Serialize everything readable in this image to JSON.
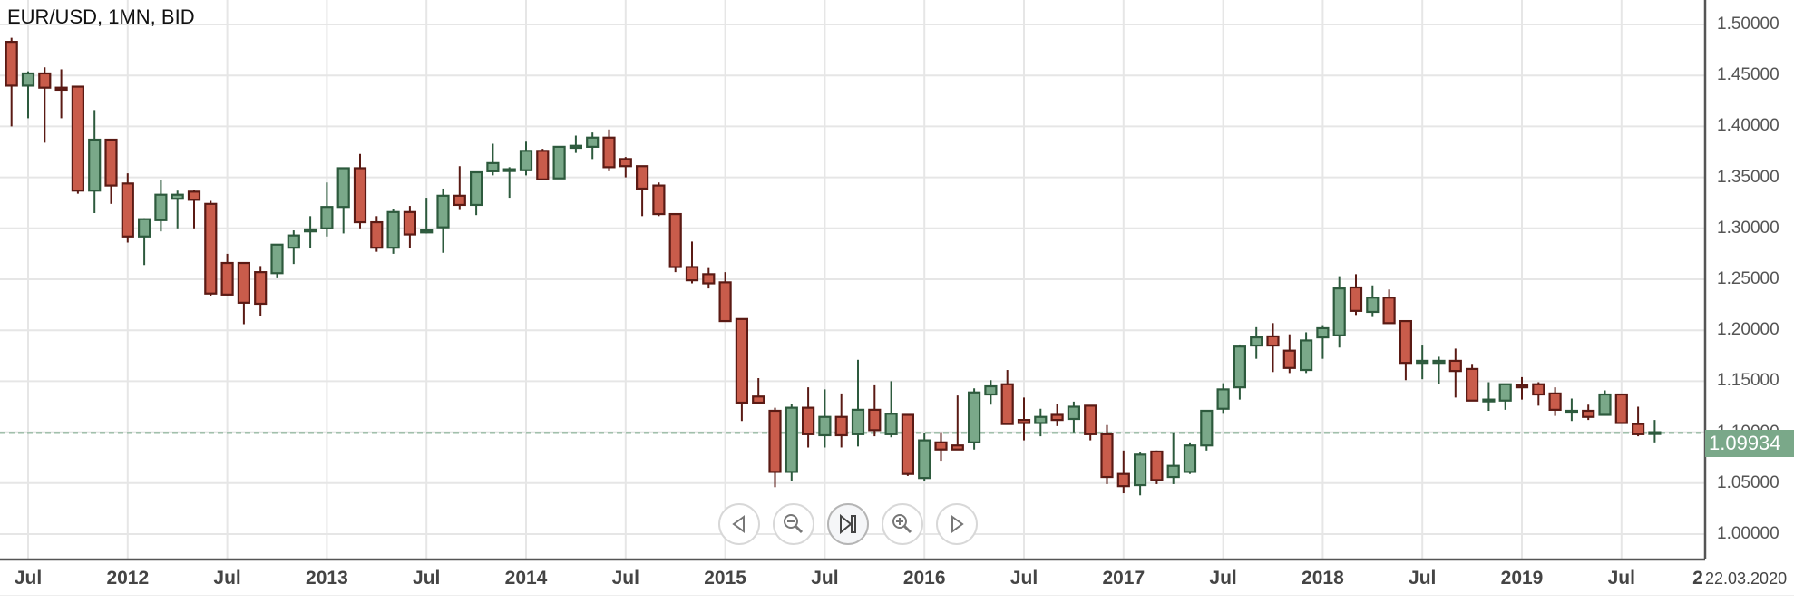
{
  "header": {
    "title": "EUR/USD, 1MN, BID"
  },
  "price_tag": {
    "value": "1.09934",
    "color": "#7aa889"
  },
  "date_label": "22.03.2020",
  "x_overflow_label": "2",
  "nav_buttons": [
    {
      "name": "scroll-left-button",
      "icon": "triangle-left-icon"
    },
    {
      "name": "zoom-out-button",
      "icon": "magnifier-minus-icon"
    },
    {
      "name": "reset-to-latest-button",
      "icon": "skip-to-end-icon"
    },
    {
      "name": "zoom-in-button",
      "icon": "magnifier-plus-icon"
    },
    {
      "name": "scroll-right-button",
      "icon": "triangle-right-icon"
    }
  ],
  "colors": {
    "up_fill": "#7aa889",
    "up_stroke": "#2d5a3d",
    "down_fill": "#c95c4b",
    "down_stroke": "#5a1a14",
    "grid": "#e6e6e6",
    "axis": "#555555",
    "price_line": "#7aa889"
  },
  "chart_data": {
    "type": "candlestick",
    "title": "EUR/USD, 1MN, BID",
    "xlabel": "",
    "ylabel": "",
    "ylim": [
      0.985,
      1.525
    ],
    "y_ticks": [
      "1.50000",
      "1.45000",
      "1.40000",
      "1.35000",
      "1.30000",
      "1.25000",
      "1.20000",
      "1.15000",
      "1.10000",
      "1.05000",
      "1.00000"
    ],
    "x_ticks": [
      {
        "label": "Jul",
        "month_index": 1
      },
      {
        "label": "2012",
        "month_index": 7
      },
      {
        "label": "Jul",
        "month_index": 13
      },
      {
        "label": "2013",
        "month_index": 19
      },
      {
        "label": "Jul",
        "month_index": 25
      },
      {
        "label": "2014",
        "month_index": 31
      },
      {
        "label": "Jul",
        "month_index": 37
      },
      {
        "label": "2015",
        "month_index": 43
      },
      {
        "label": "Jul",
        "month_index": 49
      },
      {
        "label": "2016",
        "month_index": 55
      },
      {
        "label": "Jul",
        "month_index": 61
      },
      {
        "label": "2017",
        "month_index": 67
      },
      {
        "label": "Jul",
        "month_index": 73
      },
      {
        "label": "2018",
        "month_index": 79
      },
      {
        "label": "Jul",
        "month_index": 85
      },
      {
        "label": "2019",
        "month_index": 91
      },
      {
        "label": "Jul",
        "month_index": 97
      }
    ],
    "last_price": 1.09934,
    "grid": true,
    "legend": null,
    "candles_note": "month_index 0 = Jun 2011; values estimated from pixels",
    "candles": [
      {
        "m": "2011-06",
        "o": 1.483,
        "h": 1.487,
        "l": 1.4,
        "c": 1.44
      },
      {
        "m": "2011-07",
        "o": 1.44,
        "h": 1.454,
        "l": 1.408,
        "c": 1.452
      },
      {
        "m": "2011-08",
        "o": 1.452,
        "h": 1.458,
        "l": 1.384,
        "c": 1.438
      },
      {
        "m": "2011-09",
        "o": 1.438,
        "h": 1.456,
        "l": 1.408,
        "c": 1.436
      },
      {
        "m": "2011-10",
        "o": 1.439,
        "h": 1.44,
        "l": 1.334,
        "c": 1.337
      },
      {
        "m": "2011-11",
        "o": 1.337,
        "h": 1.416,
        "l": 1.315,
        "c": 1.387
      },
      {
        "m": "2011-12",
        "o": 1.387,
        "h": 1.387,
        "l": 1.324,
        "c": 1.342
      },
      {
        "m": "2012-01",
        "o": 1.344,
        "h": 1.354,
        "l": 1.286,
        "c": 1.292
      },
      {
        "m": "2012-02",
        "o": 1.292,
        "h": 1.31,
        "l": 1.264,
        "c": 1.309
      },
      {
        "m": "2012-03",
        "o": 1.308,
        "h": 1.347,
        "l": 1.297,
        "c": 1.333
      },
      {
        "m": "2012-04",
        "o": 1.329,
        "h": 1.337,
        "l": 1.3,
        "c": 1.333
      },
      {
        "m": "2012-05",
        "o": 1.336,
        "h": 1.338,
        "l": 1.3,
        "c": 1.328
      },
      {
        "m": "2012-06",
        "o": 1.324,
        "h": 1.327,
        "l": 1.234,
        "c": 1.236
      },
      {
        "m": "2012-07",
        "o": 1.266,
        "h": 1.275,
        "l": 1.234,
        "c": 1.235
      },
      {
        "m": "2012-08",
        "o": 1.266,
        "h": 1.266,
        "l": 1.206,
        "c": 1.227
      },
      {
        "m": "2012-09",
        "o": 1.257,
        "h": 1.263,
        "l": 1.214,
        "c": 1.226
      },
      {
        "m": "2012-10",
        "o": 1.256,
        "h": 1.282,
        "l": 1.251,
        "c": 1.284
      },
      {
        "m": "2012-11",
        "o": 1.281,
        "h": 1.298,
        "l": 1.265,
        "c": 1.293
      },
      {
        "m": "2012-12",
        "o": 1.297,
        "h": 1.312,
        "l": 1.281,
        "c": 1.299
      },
      {
        "m": "2013-01",
        "o": 1.3,
        "h": 1.345,
        "l": 1.292,
        "c": 1.321
      },
      {
        "m": "2013-02",
        "o": 1.321,
        "h": 1.347,
        "l": 1.295,
        "c": 1.359
      },
      {
        "m": "2013-03",
        "o": 1.359,
        "h": 1.373,
        "l": 1.3,
        "c": 1.306
      },
      {
        "m": "2013-04",
        "o": 1.306,
        "h": 1.312,
        "l": 1.277,
        "c": 1.281
      },
      {
        "m": "2013-05",
        "o": 1.281,
        "h": 1.319,
        "l": 1.275,
        "c": 1.316
      },
      {
        "m": "2013-06",
        "o": 1.316,
        "h": 1.322,
        "l": 1.281,
        "c": 1.294
      },
      {
        "m": "2013-07",
        "o": 1.296,
        "h": 1.33,
        "l": 1.295,
        "c": 1.298
      },
      {
        "m": "2013-08",
        "o": 1.301,
        "h": 1.339,
        "l": 1.276,
        "c": 1.332
      },
      {
        "m": "2013-09",
        "o": 1.332,
        "h": 1.361,
        "l": 1.318,
        "c": 1.323
      },
      {
        "m": "2013-10",
        "o": 1.323,
        "h": 1.354,
        "l": 1.313,
        "c": 1.355
      },
      {
        "m": "2013-11",
        "o": 1.356,
        "h": 1.383,
        "l": 1.352,
        "c": 1.364
      },
      {
        "m": "2013-12",
        "o": 1.358,
        "h": 1.36,
        "l": 1.33,
        "c": 1.358
      },
      {
        "m": "2014-01",
        "o": 1.357,
        "h": 1.385,
        "l": 1.352,
        "c": 1.376
      },
      {
        "m": "2014-02",
        "o": 1.376,
        "h": 1.378,
        "l": 1.348,
        "c": 1.348
      },
      {
        "m": "2014-03",
        "o": 1.349,
        "h": 1.378,
        "l": 1.349,
        "c": 1.38
      },
      {
        "m": "2014-04",
        "o": 1.379,
        "h": 1.391,
        "l": 1.374,
        "c": 1.381
      },
      {
        "m": "2014-05",
        "o": 1.38,
        "h": 1.394,
        "l": 1.368,
        "c": 1.389
      },
      {
        "m": "2014-06",
        "o": 1.389,
        "h": 1.397,
        "l": 1.356,
        "c": 1.36
      },
      {
        "m": "2014-07",
        "o": 1.368,
        "h": 1.37,
        "l": 1.35,
        "c": 1.361
      },
      {
        "m": "2014-08",
        "o": 1.361,
        "h": 1.361,
        "l": 1.312,
        "c": 1.339
      },
      {
        "m": "2014-09",
        "o": 1.342,
        "h": 1.345,
        "l": 1.312,
        "c": 1.314
      },
      {
        "m": "2014-10",
        "o": 1.314,
        "h": 1.315,
        "l": 1.257,
        "c": 1.262
      },
      {
        "m": "2014-11",
        "o": 1.262,
        "h": 1.287,
        "l": 1.246,
        "c": 1.249
      },
      {
        "m": "2014-12",
        "o": 1.255,
        "h": 1.261,
        "l": 1.241,
        "c": 1.246
      },
      {
        "m": "2015-01",
        "o": 1.247,
        "h": 1.257,
        "l": 1.209,
        "c": 1.209
      },
      {
        "m": "2015-02",
        "o": 1.211,
        "h": 1.211,
        "l": 1.111,
        "c": 1.129
      },
      {
        "m": "2015-03",
        "o": 1.135,
        "h": 1.153,
        "l": 1.128,
        "c": 1.129
      },
      {
        "m": "2015-04",
        "o": 1.121,
        "h": 1.124,
        "l": 1.046,
        "c": 1.061
      },
      {
        "m": "2015-05",
        "o": 1.061,
        "h": 1.128,
        "l": 1.052,
        "c": 1.124
      },
      {
        "m": "2015-06",
        "o": 1.124,
        "h": 1.144,
        "l": 1.085,
        "c": 1.098
      },
      {
        "m": "2015-07",
        "o": 1.097,
        "h": 1.142,
        "l": 1.085,
        "c": 1.115
      },
      {
        "m": "2015-08",
        "o": 1.115,
        "h": 1.138,
        "l": 1.085,
        "c": 1.097
      },
      {
        "m": "2015-09",
        "o": 1.098,
        "h": 1.171,
        "l": 1.086,
        "c": 1.122
      },
      {
        "m": "2015-10",
        "o": 1.122,
        "h": 1.146,
        "l": 1.096,
        "c": 1.102
      },
      {
        "m": "2015-11",
        "o": 1.098,
        "h": 1.15,
        "l": 1.095,
        "c": 1.118
      },
      {
        "m": "2015-12",
        "o": 1.117,
        "h": 1.117,
        "l": 1.057,
        "c": 1.059
      },
      {
        "m": "2016-01",
        "o": 1.055,
        "h": 1.099,
        "l": 1.052,
        "c": 1.092
      },
      {
        "m": "2016-02",
        "o": 1.09,
        "h": 1.1,
        "l": 1.072,
        "c": 1.083
      },
      {
        "m": "2016-03",
        "o": 1.087,
        "h": 1.136,
        "l": 1.083,
        "c": 1.083
      },
      {
        "m": "2016-04",
        "o": 1.09,
        "h": 1.143,
        "l": 1.083,
        "c": 1.139
      },
      {
        "m": "2016-05",
        "o": 1.137,
        "h": 1.151,
        "l": 1.127,
        "c": 1.145
      },
      {
        "m": "2016-06",
        "o": 1.147,
        "h": 1.161,
        "l": 1.108,
        "c": 1.108
      },
      {
        "m": "2016-07",
        "o": 1.112,
        "h": 1.134,
        "l": 1.092,
        "c": 1.109
      },
      {
        "m": "2016-08",
        "o": 1.109,
        "h": 1.123,
        "l": 1.096,
        "c": 1.115
      },
      {
        "m": "2016-09",
        "o": 1.117,
        "h": 1.128,
        "l": 1.106,
        "c": 1.112
      },
      {
        "m": "2016-10",
        "o": 1.113,
        "h": 1.13,
        "l": 1.1,
        "c": 1.125
      },
      {
        "m": "2016-11",
        "o": 1.126,
        "h": 1.126,
        "l": 1.092,
        "c": 1.098
      },
      {
        "m": "2016-12",
        "o": 1.098,
        "h": 1.107,
        "l": 1.049,
        "c": 1.056
      },
      {
        "m": "2017-01",
        "o": 1.059,
        "h": 1.082,
        "l": 1.04,
        "c": 1.047
      },
      {
        "m": "2017-02",
        "o": 1.048,
        "h": 1.08,
        "l": 1.038,
        "c": 1.078
      },
      {
        "m": "2017-03",
        "o": 1.081,
        "h": 1.082,
        "l": 1.049,
        "c": 1.053
      },
      {
        "m": "2017-04",
        "o": 1.056,
        "h": 1.099,
        "l": 1.049,
        "c": 1.067
      },
      {
        "m": "2017-05",
        "o": 1.061,
        "h": 1.09,
        "l": 1.059,
        "c": 1.087
      },
      {
        "m": "2017-06",
        "o": 1.087,
        "h": 1.121,
        "l": 1.082,
        "c": 1.121
      },
      {
        "m": "2017-07",
        "o": 1.123,
        "h": 1.148,
        "l": 1.118,
        "c": 1.142
      },
      {
        "m": "2017-08",
        "o": 1.144,
        "h": 1.186,
        "l": 1.132,
        "c": 1.184
      },
      {
        "m": "2017-09",
        "o": 1.185,
        "h": 1.203,
        "l": 1.172,
        "c": 1.193
      },
      {
        "m": "2017-10",
        "o": 1.194,
        "h": 1.207,
        "l": 1.159,
        "c": 1.185
      },
      {
        "m": "2017-11",
        "o": 1.18,
        "h": 1.196,
        "l": 1.158,
        "c": 1.163
      },
      {
        "m": "2017-12",
        "o": 1.161,
        "h": 1.198,
        "l": 1.158,
        "c": 1.19
      },
      {
        "m": "2018-01",
        "o": 1.193,
        "h": 1.205,
        "l": 1.172,
        "c": 1.202
      },
      {
        "m": "2018-02",
        "o": 1.195,
        "h": 1.253,
        "l": 1.183,
        "c": 1.241
      },
      {
        "m": "2018-03",
        "o": 1.242,
        "h": 1.255,
        "l": 1.215,
        "c": 1.219
      },
      {
        "m": "2018-04",
        "o": 1.218,
        "h": 1.244,
        "l": 1.213,
        "c": 1.232
      },
      {
        "m": "2018-05",
        "o": 1.232,
        "h": 1.24,
        "l": 1.209,
        "c": 1.207
      },
      {
        "m": "2018-06",
        "o": 1.209,
        "h": 1.209,
        "l": 1.151,
        "c": 1.168
      },
      {
        "m": "2018-07",
        "o": 1.168,
        "h": 1.185,
        "l": 1.152,
        "c": 1.17
      },
      {
        "m": "2018-08",
        "o": 1.168,
        "h": 1.174,
        "l": 1.147,
        "c": 1.17
      },
      {
        "m": "2018-09",
        "o": 1.17,
        "h": 1.182,
        "l": 1.134,
        "c": 1.16
      },
      {
        "m": "2018-10",
        "o": 1.162,
        "h": 1.167,
        "l": 1.132,
        "c": 1.131
      },
      {
        "m": "2018-11",
        "o": 1.131,
        "h": 1.149,
        "l": 1.121,
        "c": 1.132
      },
      {
        "m": "2018-12",
        "o": 1.131,
        "h": 1.146,
        "l": 1.122,
        "c": 1.147
      },
      {
        "m": "2019-01",
        "o": 1.146,
        "h": 1.154,
        "l": 1.132,
        "c": 1.144
      },
      {
        "m": "2019-02",
        "o": 1.147,
        "h": 1.149,
        "l": 1.126,
        "c": 1.137
      },
      {
        "m": "2019-03",
        "o": 1.138,
        "h": 1.144,
        "l": 1.116,
        "c": 1.122
      },
      {
        "m": "2019-04",
        "o": 1.121,
        "h": 1.133,
        "l": 1.111,
        "c": 1.121
      },
      {
        "m": "2019-05",
        "o": 1.121,
        "h": 1.127,
        "l": 1.112,
        "c": 1.115
      },
      {
        "m": "2019-06",
        "o": 1.117,
        "h": 1.141,
        "l": 1.117,
        "c": 1.137
      },
      {
        "m": "2019-07",
        "o": 1.137,
        "h": 1.137,
        "l": 1.109,
        "c": 1.109
      },
      {
        "m": "2019-08",
        "o": 1.108,
        "h": 1.125,
        "l": 1.096,
        "c": 1.098
      },
      {
        "m": "2019-09",
        "o": 1.099,
        "h": 1.112,
        "l": 1.09,
        "c": 1.1
      }
    ]
  }
}
